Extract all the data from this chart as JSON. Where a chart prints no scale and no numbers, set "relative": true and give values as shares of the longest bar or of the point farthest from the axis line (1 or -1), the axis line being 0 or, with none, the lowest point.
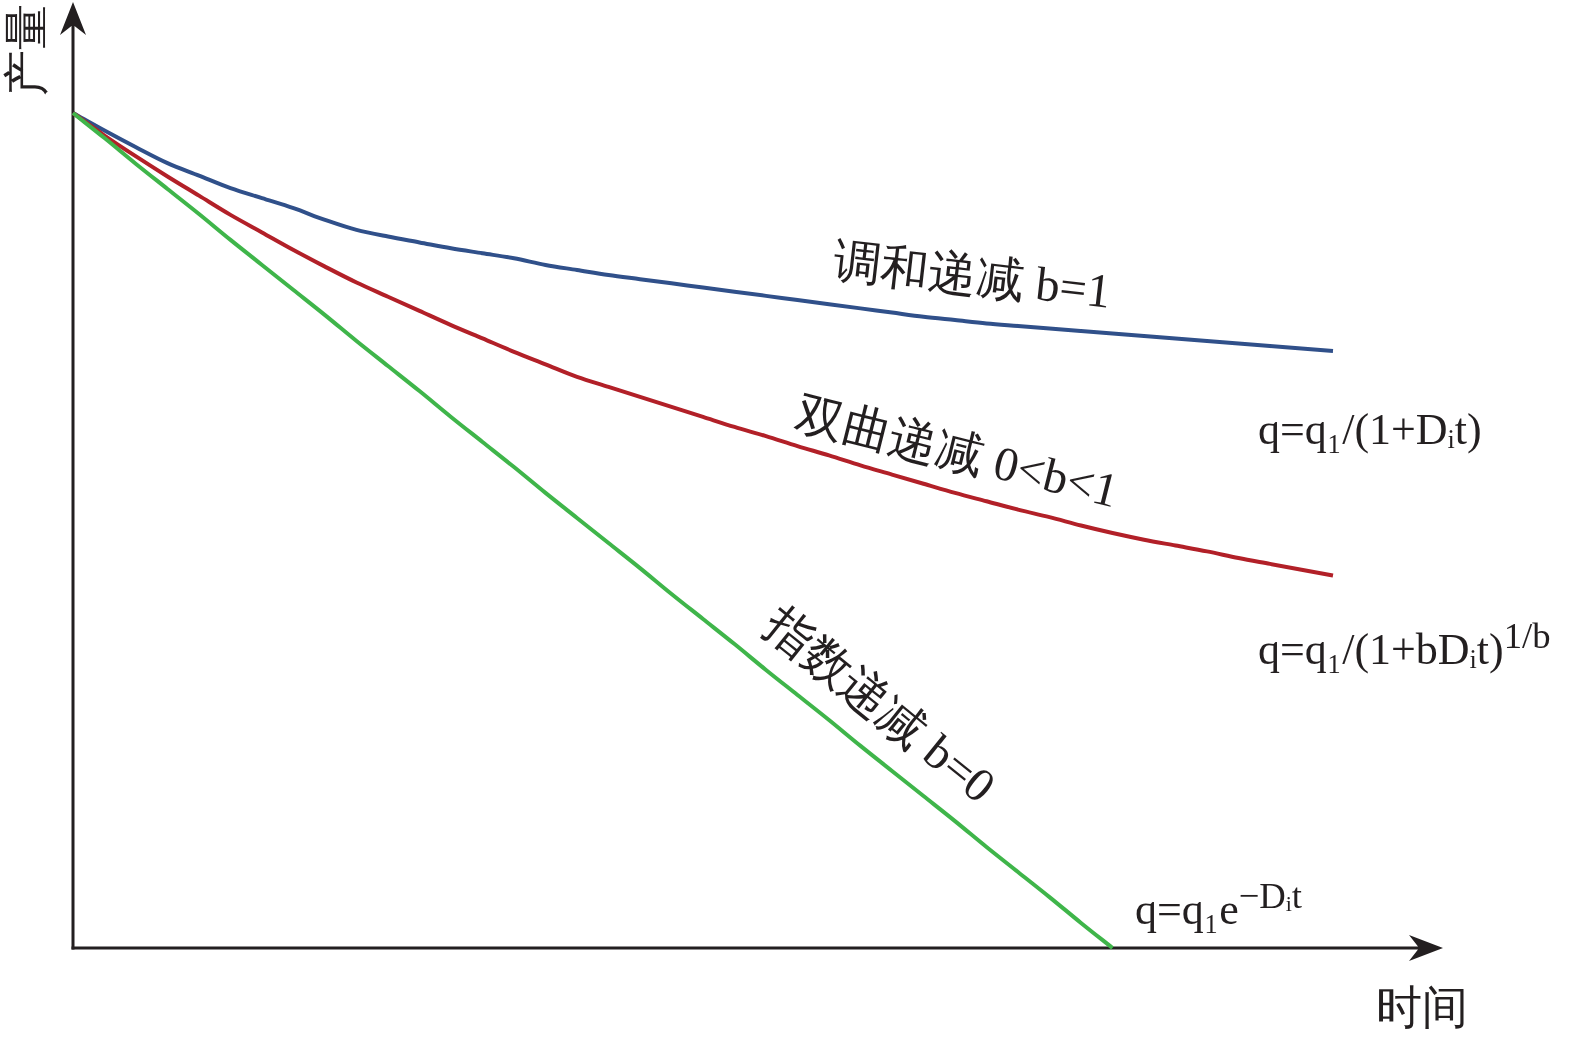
{
  "chart_data": {
    "type": "line",
    "relative": true,
    "xlabel": "时间",
    "ylabel": "产量",
    "categories": [
      null,
      null,
      null,
      null,
      null,
      null,
      null,
      null,
      null,
      null,
      null,
      null,
      null,
      null,
      null,
      null,
      null,
      null,
      null,
      null,
      null,
      null,
      null,
      null,
      null,
      null,
      null,
      null,
      null,
      null,
      null,
      null,
      null,
      null,
      null,
      null,
      null,
      null,
      null,
      null,
      null
    ],
    "series": [
      {
        "name": "调和递减 b=1",
        "color": "#30508a",
        "values": [
          1,
          0.979,
          0.959,
          0.94,
          0.925,
          0.91,
          0.898,
          0.886,
          0.872,
          0.86,
          0.852,
          0.845,
          0.838,
          0.832,
          0.826,
          0.818,
          0.812,
          0.806,
          0.801,
          0.796,
          0.791,
          0.786,
          0.781,
          0.776,
          0.771,
          0.766,
          0.761,
          0.756,
          0.752,
          0.748,
          0.745,
          0.742,
          0.739,
          0.736,
          0.733,
          0.73,
          0.727,
          0.724,
          0.721,
          0.718,
          0.715
        ]
      },
      {
        "name": "双曲递减 0<b<1",
        "color": "#b22028",
        "values": [
          1,
          0.973,
          0.948,
          0.924,
          0.901,
          0.878,
          0.857,
          0.836,
          0.816,
          0.797,
          0.78,
          0.763,
          0.746,
          0.73,
          0.714,
          0.699,
          0.684,
          0.672,
          0.66,
          0.648,
          0.636,
          0.624,
          0.613,
          0.601,
          0.59,
          0.578,
          0.567,
          0.556,
          0.545,
          0.535,
          0.525,
          0.516,
          0.506,
          0.497,
          0.489,
          0.482,
          0.475,
          0.467,
          0.46,
          0.453,
          0.446
        ]
      },
      {
        "name": "指数递减 b=0",
        "color": "#3fb54a",
        "values": [
          1,
          0.97,
          0.939,
          0.909,
          0.879,
          0.848,
          0.818,
          0.788,
          0.758,
          0.727,
          0.697,
          0.667,
          0.636,
          0.606,
          0.576,
          0.545,
          0.515,
          0.485,
          0.455,
          0.424,
          0.394,
          0.364,
          0.333,
          0.303,
          0.273,
          0.242,
          0.212,
          0.182,
          0.152,
          0.121,
          0.091,
          0.061,
          0.03,
          0,
          null,
          null,
          null,
          null,
          null,
          null,
          null
        ]
      }
    ],
    "annotations": [
      "q=q₁/(1+Dᵢt)",
      "q=q₁/(1+bDᵢt)$^{1/b}$",
      "q=q₁e$^{−Dᵢt}$"
    ]
  }
}
